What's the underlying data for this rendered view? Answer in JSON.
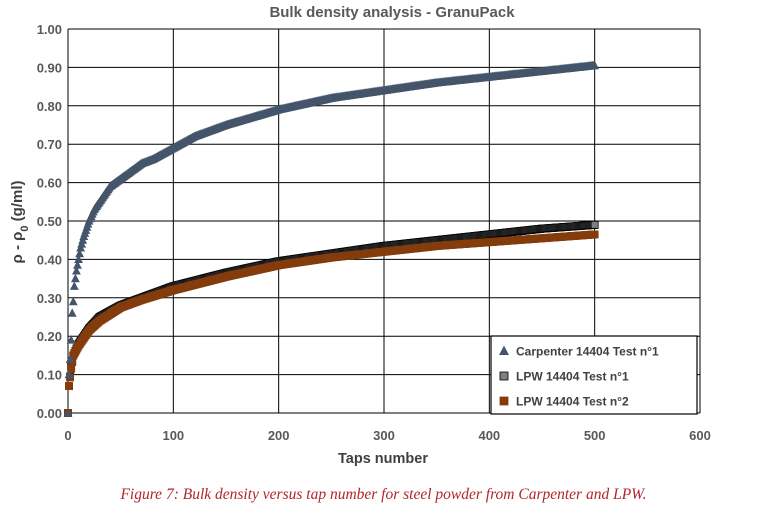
{
  "chart_data": {
    "type": "scatter",
    "title": "Bulk density analysis - GranuPack",
    "xlabel": "Taps number",
    "ylabel_main": "ρ - ρ",
    "ylabel_sub": "0",
    "ylabel_unit": " (g/ml)",
    "xlim": [
      0,
      600
    ],
    "ylim": [
      0,
      1.0
    ],
    "x_ticks": [
      0,
      100,
      200,
      300,
      400,
      500,
      600
    ],
    "x_tick_labels": [
      "0",
      "100",
      "200",
      "300",
      "400",
      "500",
      "600"
    ],
    "y_ticks": [
      0,
      0.1,
      0.2,
      0.3,
      0.4,
      0.5,
      0.6,
      0.7,
      0.8,
      0.9,
      1.0
    ],
    "y_tick_labels": [
      "0.00",
      "0.10",
      "0.20",
      "0.30",
      "0.40",
      "0.50",
      "0.60",
      "0.70",
      "0.80",
      "0.90",
      "1.00"
    ],
    "grid": true,
    "legend_position": "bottom-right",
    "series": [
      {
        "name": "Carpenter 14404 Test n°1",
        "marker": "triangle",
        "color": "#44546a",
        "x": [
          0,
          1,
          2,
          3,
          4,
          5,
          6,
          8,
          10,
          12,
          15,
          20,
          25,
          30,
          40,
          50,
          60,
          70,
          80,
          100,
          120,
          150,
          200,
          250,
          300,
          350,
          400,
          450,
          500
        ],
        "y": [
          0.0,
          0.1,
          0.14,
          0.19,
          0.26,
          0.29,
          0.33,
          0.37,
          0.4,
          0.43,
          0.46,
          0.5,
          0.53,
          0.55,
          0.59,
          0.61,
          0.63,
          0.65,
          0.66,
          0.69,
          0.72,
          0.75,
          0.79,
          0.82,
          0.84,
          0.86,
          0.875,
          0.89,
          0.905
        ]
      },
      {
        "name": "LPW 14404 Test n°1",
        "marker": "square",
        "color": "#808080",
        "x": [
          0,
          1,
          3,
          5,
          10,
          20,
          30,
          50,
          70,
          100,
          150,
          200,
          250,
          300,
          350,
          400,
          450,
          500
        ],
        "y": [
          0.0,
          0.07,
          0.12,
          0.15,
          0.18,
          0.22,
          0.25,
          0.28,
          0.3,
          0.33,
          0.365,
          0.395,
          0.415,
          0.435,
          0.45,
          0.465,
          0.48,
          0.49
        ]
      },
      {
        "name": "LPW 14404 Test n°2",
        "marker": "square",
        "color": "#843c0c",
        "x": [
          0,
          1,
          3,
          5,
          10,
          20,
          30,
          50,
          70,
          100,
          150,
          200,
          250,
          300,
          350,
          400,
          450,
          500
        ],
        "y": [
          0.0,
          0.07,
          0.115,
          0.15,
          0.175,
          0.215,
          0.24,
          0.275,
          0.295,
          0.32,
          0.355,
          0.385,
          0.405,
          0.42,
          0.435,
          0.445,
          0.455,
          0.465
        ]
      }
    ]
  },
  "caption": "Figure 7: Bulk density versus tap number for steel powder from Carpenter and LPW."
}
